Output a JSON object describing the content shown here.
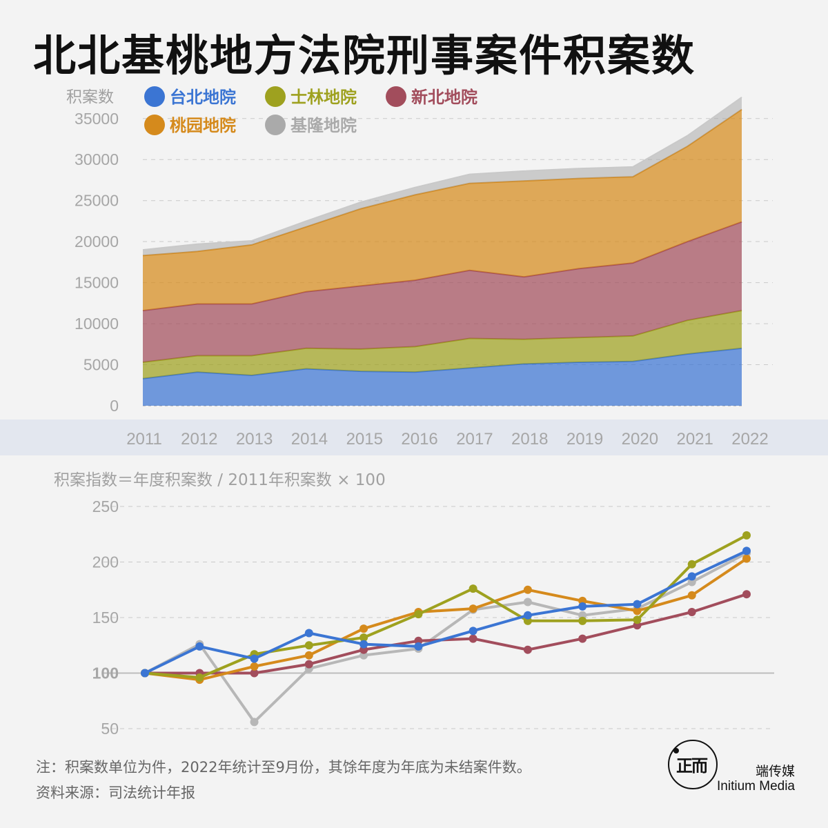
{
  "title": "北北基桃地方法院刑事案件积案数",
  "chart_data": [
    {
      "type": "area",
      "stacked": true,
      "ylabel": "积案数",
      "ylim": [
        0,
        37000
      ],
      "yticks": [
        0,
        5000,
        10000,
        15000,
        20000,
        25000,
        30000,
        35000
      ],
      "grid": true,
      "legend": "top-left",
      "x": [
        "2011",
        "2012",
        "2013",
        "2014",
        "2015",
        "2016",
        "2017",
        "2018",
        "2019",
        "2020",
        "2021",
        "2022"
      ],
      "series": [
        {
          "name": "台北地院",
          "color": "#3b75d3",
          "values": [
            3300,
            4100,
            3700,
            4500,
            4200,
            4100,
            4600,
            5100,
            5300,
            5400,
            6300,
            7000
          ]
        },
        {
          "name": "士林地院",
          "color": "#9ea11f",
          "values": [
            2000,
            2000,
            2400,
            2500,
            2700,
            3100,
            3600,
            3000,
            3000,
            3100,
            4100,
            4600
          ]
        },
        {
          "name": "新北地院",
          "color": "#a24d5c",
          "values": [
            6300,
            6300,
            6300,
            6900,
            7700,
            8100,
            8300,
            7600,
            8400,
            8900,
            9600,
            10800
          ]
        },
        {
          "name": "桃园地院",
          "color": "#d58a1c",
          "values": [
            6700,
            6400,
            7200,
            7900,
            9400,
            10400,
            10600,
            11700,
            11000,
            10500,
            11600,
            13700
          ]
        },
        {
          "name": "基隆地院",
          "color": "#aaaaaa",
          "values": [
            700,
            900,
            500,
            700,
            800,
            900,
            1100,
            1200,
            1200,
            1200,
            1300,
            1500
          ]
        }
      ]
    },
    {
      "type": "line",
      "ylabel": "积案指数＝年度积案数 / 2011年积案数 × 100",
      "ylim": [
        50,
        250
      ],
      "yticks": [
        50,
        100,
        150,
        200,
        250
      ],
      "grid": true,
      "x": [
        "2011",
        "2012",
        "2013",
        "2014",
        "2015",
        "2016",
        "2017",
        "2018",
        "2019",
        "2020",
        "2021",
        "2022"
      ],
      "series": [
        {
          "name": "基隆地院",
          "color": "#b7b7b7",
          "values": [
            100,
            126,
            56,
            104,
            116,
            122,
            157,
            164,
            152,
            158,
            182,
            208
          ]
        },
        {
          "name": "新北地院",
          "color": "#a24d5c",
          "values": [
            100,
            100,
            100,
            108,
            121,
            129,
            131,
            121,
            131,
            143,
            155,
            171
          ]
        },
        {
          "name": "桃园地院",
          "color": "#d58a1c",
          "values": [
            100,
            94,
            106,
            116,
            140,
            155,
            158,
            175,
            165,
            156,
            170,
            203
          ]
        },
        {
          "name": "士林地院",
          "color": "#9ea11f",
          "values": [
            100,
            96,
            117,
            125,
            132,
            153,
            176,
            147,
            147,
            148,
            198,
            224
          ]
        },
        {
          "name": "台北地院",
          "color": "#3b75d3",
          "values": [
            100,
            124,
            113,
            136,
            126,
            124,
            138,
            152,
            160,
            162,
            187,
            210
          ]
        }
      ]
    }
  ],
  "footer": {
    "note": "注：积案数单位为件，2022年统计至9月份，其馀年度为年底为未结案件数。",
    "source": "资料来源：司法统计年报",
    "brand_cn": "端传媒",
    "brand_en": "Initium Media",
    "logo_glyph": "正而"
  }
}
